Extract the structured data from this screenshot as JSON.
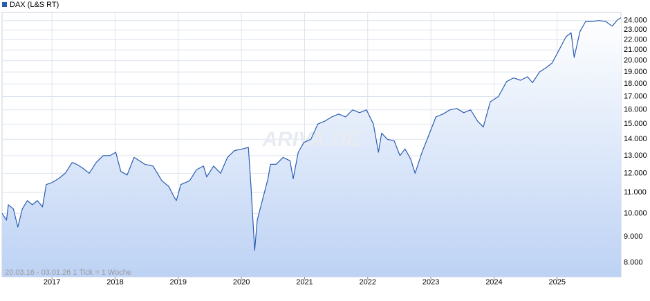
{
  "chart_data": {
    "type": "line",
    "legend": "DAX (L&S RT)",
    "watermark": "ARIVA.DE",
    "footer": "20.03.16 - 03.01.26   1 Tick = 1 Woche",
    "log_scale": true,
    "grid": true,
    "color": "#2a5db0",
    "xlim": [
      2016.21,
      2026.01
    ],
    "xticks": [
      2017,
      2018,
      2019,
      2020,
      2021,
      2022,
      2023,
      2024,
      2025
    ],
    "ylim": [
      7500,
      24900
    ],
    "yticks": [
      {
        "value": 8000,
        "label": "8.000"
      },
      {
        "value": 9000,
        "label": "9.000"
      },
      {
        "value": 10000,
        "label": "10.000"
      },
      {
        "value": 11000,
        "label": "11.000"
      },
      {
        "value": 12000,
        "label": "12.000"
      },
      {
        "value": 13000,
        "label": "13.000"
      },
      {
        "value": 14000,
        "label": "14.000"
      },
      {
        "value": 15000,
        "label": "15.000"
      },
      {
        "value": 16000,
        "label": "16.000"
      },
      {
        "value": 17000,
        "label": "17.000"
      },
      {
        "value": 18000,
        "label": "18.000"
      },
      {
        "value": 19000,
        "label": "19.000"
      },
      {
        "value": 20000,
        "label": "20.000"
      },
      {
        "value": 21000,
        "label": "21.000"
      },
      {
        "value": 22000,
        "label": "22.000"
      },
      {
        "value": 23000,
        "label": "23.000"
      },
      {
        "value": 24000,
        "label": "24.000"
      }
    ],
    "x": [
      2016.21,
      2016.28,
      2016.31,
      2016.39,
      2016.46,
      2016.53,
      2016.61,
      2016.69,
      2016.77,
      2016.85,
      2016.91,
      2017.0,
      2017.1,
      2017.21,
      2017.32,
      2017.39,
      2017.48,
      2017.59,
      2017.7,
      2017.81,
      2017.92,
      2018.01,
      2018.09,
      2018.19,
      2018.3,
      2018.47,
      2018.6,
      2018.74,
      2018.85,
      2018.93,
      2018.97,
      2019.04,
      2019.18,
      2019.29,
      2019.4,
      2019.45,
      2019.56,
      2019.67,
      2019.78,
      2019.89,
      2020.02,
      2020.11,
      2020.15,
      2020.21,
      2020.25,
      2020.33,
      2020.42,
      2020.46,
      2020.55,
      2020.66,
      2020.77,
      2020.82,
      2020.9,
      2020.99,
      2021.1,
      2021.21,
      2021.32,
      2021.43,
      2021.54,
      2021.65,
      2021.76,
      2021.87,
      2021.98,
      2022.09,
      2022.17,
      2022.22,
      2022.31,
      2022.42,
      2022.51,
      2022.59,
      2022.68,
      2022.75,
      2022.86,
      2022.97,
      2023.08,
      2023.19,
      2023.3,
      2023.41,
      2023.52,
      2023.63,
      2023.74,
      2023.83,
      2023.94,
      2024.07,
      2024.2,
      2024.31,
      2024.42,
      2024.53,
      2024.61,
      2024.72,
      2024.83,
      2024.92,
      2025.03,
      2025.14,
      2025.22,
      2025.27,
      2025.36,
      2025.45,
      2025.55,
      2025.66,
      2025.77,
      2025.87,
      2025.96,
      2026.01
    ],
    "values": [
      10000,
      9700,
      10400,
      10200,
      9400,
      10200,
      10600,
      10400,
      10600,
      10300,
      11400,
      11500,
      11700,
      12000,
      12600,
      12500,
      12300,
      12000,
      12600,
      13000,
      13000,
      13200,
      12100,
      11900,
      12900,
      12500,
      12400,
      11600,
      11300,
      10800,
      10600,
      11400,
      11600,
      12200,
      12400,
      11800,
      12400,
      12000,
      12900,
      13300,
      13400,
      13500,
      11400,
      8450,
      9700,
      10600,
      11700,
      12500,
      12500,
      12900,
      12700,
      11700,
      13200,
      13800,
      14000,
      15000,
      15200,
      15500,
      15700,
      15500,
      16000,
      15800,
      16000,
      15000,
      13200,
      14400,
      14000,
      13900,
      13000,
      13400,
      12800,
      12000,
      13200,
      14300,
      15500,
      15700,
      16000,
      16100,
      15800,
      16000,
      15200,
      14800,
      16600,
      17000,
      18200,
      18500,
      18300,
      18600,
      18100,
      19000,
      19400,
      19800,
      21000,
      22300,
      22700,
      20300,
      22800,
      23900,
      23900,
      24000,
      23900,
      23400,
      24100,
      24300
    ]
  }
}
